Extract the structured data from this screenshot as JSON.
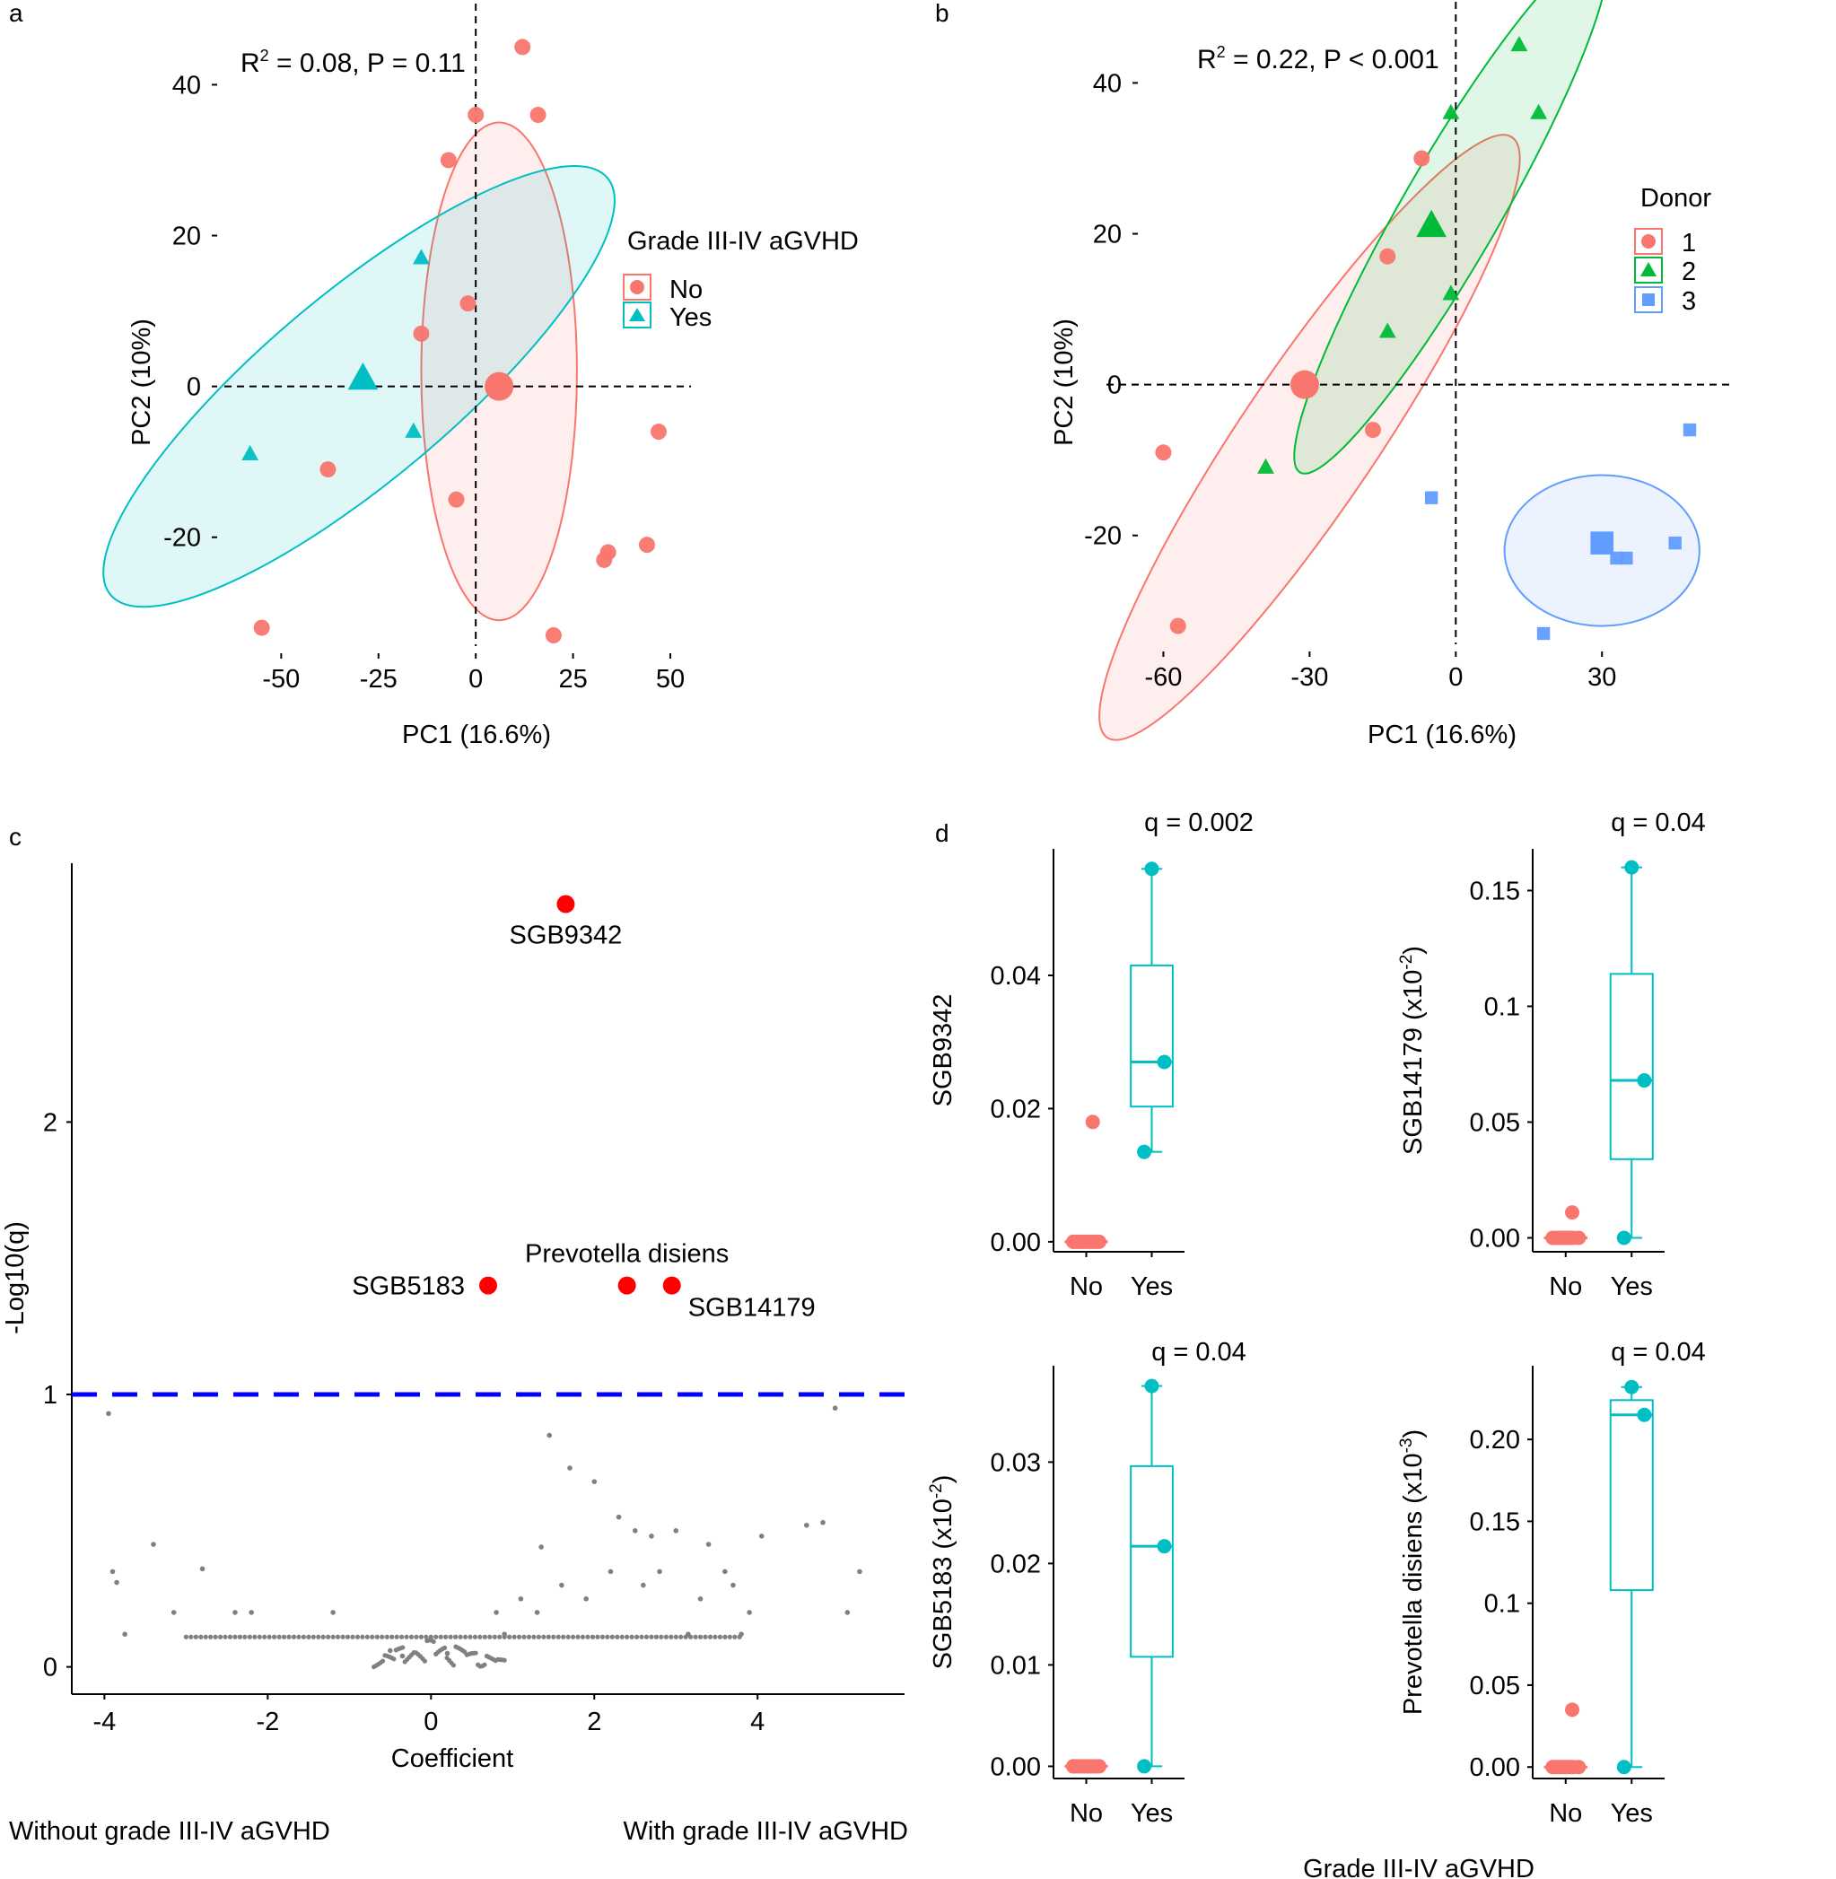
{
  "panel_labels": {
    "a": "a",
    "b": "b",
    "c": "c",
    "d": "d"
  },
  "colors": {
    "red": "#F8766D",
    "teal": "#00BFC4",
    "green": "#00BA38",
    "blue": "#619CFF",
    "sig": "#FF0000",
    "grey": "#808080",
    "threshold": "#0000FF"
  },
  "chart_data": [
    {
      "id": "a",
      "type": "scatter",
      "xlabel": "PC1 (16.6%)",
      "ylabel": "PC2 (10%)",
      "xlim": [
        -60,
        53
      ],
      "ylim": [
        -33,
        46
      ],
      "xticks": [
        -50,
        -25,
        0,
        25,
        50
      ],
      "yticks": [
        -20,
        0,
        20,
        40
      ],
      "annotation": {
        "base": "R",
        "sup": "2",
        "rest": " = 0.08, P = 0.11"
      },
      "legend": {
        "title": "Grade III-IV aGVHD",
        "placement": "right"
      },
      "series": [
        {
          "name": "No",
          "color": "#F8766D",
          "shape": "circle",
          "x": [
            12,
            16,
            0,
            -7,
            -2,
            -14,
            -38,
            -5,
            -55,
            20,
            33,
            34,
            44,
            47
          ],
          "y": [
            45,
            36,
            36,
            30,
            11,
            7,
            -11,
            -15,
            -32,
            -33,
            -23,
            -22,
            -21,
            -6
          ],
          "centroid": [
            6,
            0
          ],
          "ellipse": {
            "cx": 6,
            "cy": 2,
            "rx": 20,
            "ry": 33,
            "angle": 0
          }
        },
        {
          "name": "Yes",
          "color": "#00BFC4",
          "shape": "triangle",
          "x": [
            -14,
            -16,
            -58
          ],
          "y": [
            17,
            -6,
            -9
          ],
          "centroid": [
            -29,
            1
          ],
          "ellipse": {
            "cx": -30,
            "cy": 0,
            "rx": 24,
            "ry": 43,
            "angle": 50
          }
        }
      ]
    },
    {
      "id": "b",
      "type": "scatter",
      "xlabel": "PC1 (16.6%)",
      "ylabel": "PC2 (10%)",
      "xlim": [
        -68,
        55
      ],
      "ylim": [
        -33,
        46
      ],
      "xticks": [
        -60,
        -30,
        0,
        30
      ],
      "yticks": [
        -20,
        0,
        20,
        40
      ],
      "annotation": {
        "base": "R",
        "sup": "2",
        "rest": " = 0.22, P < 0.001"
      },
      "legend": {
        "title": "Donor",
        "placement": "right"
      },
      "series": [
        {
          "name": "1",
          "color": "#F8766D",
          "shape": "circle",
          "x": [
            -7,
            -14,
            -60,
            -57,
            -17
          ],
          "y": [
            30,
            17,
            -9,
            -32,
            -6
          ],
          "centroid": [
            -31,
            0
          ],
          "ellipse": {
            "cx": -30,
            "cy": -7,
            "rx": 14,
            "ry": 48,
            "angle": 34
          }
        },
        {
          "name": "2",
          "color": "#00BA38",
          "shape": "triangle",
          "x": [
            13,
            17,
            -1,
            -1,
            -14,
            -39
          ],
          "y": [
            45,
            36,
            36,
            12,
            7,
            -11
          ],
          "centroid": [
            -5,
            21
          ],
          "ellipse": {
            "cx": -1,
            "cy": 23,
            "rx": 10,
            "ry": 40,
            "angle": 30
          }
        },
        {
          "name": "3",
          "color": "#619CFF",
          "shape": "square",
          "x": [
            -5,
            48,
            45,
            35,
            33,
            18
          ],
          "y": [
            -15,
            -6,
            -21,
            -23,
            -23,
            -33
          ],
          "centroid": [
            30,
            -21
          ],
          "ellipse": {
            "cx": 30,
            "cy": -22,
            "rx": 20,
            "ry": 10,
            "angle": 0
          }
        }
      ]
    },
    {
      "id": "c",
      "type": "scatter",
      "xlabel": "Coefficient",
      "ylabel": "-Log10(q)",
      "xlim": [
        -4.4,
        5.8
      ],
      "ylim": [
        -0.1,
        2.95
      ],
      "xticks": [
        -4,
        -2,
        0,
        2,
        4
      ],
      "yticks": [
        0,
        1,
        2
      ],
      "threshold": 1,
      "bottom_labels": {
        "left": "Without grade III-IV aGVHD",
        "right": "With grade III-IV aGVHD"
      },
      "significant": [
        {
          "label": "SGB9342",
          "x": 1.65,
          "y": 2.8
        },
        {
          "label": "SGB5183",
          "x": 0.7,
          "y": 1.4
        },
        {
          "label": "Prevotella disiens",
          "x": 2.4,
          "y": 1.4
        },
        {
          "label": "SGB14179",
          "x": 2.95,
          "y": 1.4
        }
      ],
      "background": {
        "x": [
          -3.95,
          -3.9,
          -3.85,
          -3.75,
          -3.4,
          -3.15,
          -2.8,
          -2.4,
          -2.2,
          -1.2,
          1.1,
          1.45,
          1.7,
          2.0,
          2.3,
          2.5,
          2.7,
          3.0,
          3.4,
          3.6,
          4.05,
          4.6,
          4.8,
          4.95,
          5.1,
          5.25,
          -0.5,
          -0.35,
          0.2,
          0.8,
          1.1,
          1.35,
          1.9,
          2.2,
          2.8,
          3.3,
          3.9,
          0.9,
          1.6,
          2.6,
          3.7,
          1.3,
          3.15,
          3.8
        ],
        "y": [
          0.93,
          0.35,
          0.31,
          0.12,
          0.45,
          0.2,
          0.36,
          0.2,
          0.2,
          0.2,
          1.0,
          0.85,
          0.73,
          0.68,
          0.55,
          0.5,
          0.48,
          0.5,
          0.45,
          0.35,
          0.48,
          0.52,
          0.53,
          0.95,
          0.2,
          0.35,
          0.06,
          0.04,
          0.05,
          0.2,
          0.25,
          0.44,
          0.25,
          0.35,
          0.35,
          0.25,
          0.2,
          0.12,
          0.3,
          0.3,
          0.3,
          0.2,
          0.12,
          0.12
        ],
        "band": {
          "x_min": -3.0,
          "x_max": 3.8,
          "y": 0.11
        },
        "cluster": {
          "x_min": -0.7,
          "x_max": 0.9,
          "y_min": 0.0,
          "y_max": 0.1
        }
      }
    },
    {
      "id": "d",
      "type": "box",
      "xlabel": "Grade III-IV aGVHD",
      "categories": [
        "No",
        "Yes"
      ],
      "panels": [
        {
          "title": "q = 0.002",
          "ylabel": "SGB9342",
          "ylim": [
            -0.0015,
            0.059
          ],
          "yticks": [
            0,
            0.02,
            0.04
          ],
          "ytick_labels": [
            "0.00",
            "0.02",
            "0.04"
          ],
          "no_points": [
            0.0,
            0.0,
            0.0,
            0.0,
            0.0,
            0.0,
            0.0,
            0.0,
            0.0,
            0.0,
            0.0,
            0.0,
            0.0,
            0.018
          ],
          "yes_points": [
            0.056,
            0.027,
            0.0135
          ],
          "yes_box": {
            "min": 0.0135,
            "q1": 0.0203,
            "median": 0.027,
            "q3": 0.0415,
            "max": 0.056
          }
        },
        {
          "title": "q = 0.04",
          "ylabel": "SGB14179 (x10",
          "ylabel_sup": "-2",
          "ylabel_tail": ")",
          "ylim": [
            -0.006,
            0.168
          ],
          "yticks": [
            0,
            0.05,
            0.1,
            0.15
          ],
          "ytick_labels": [
            "0.00",
            "0.05",
            "0.1",
            "0.15"
          ],
          "no_points": [
            0.0,
            0.0,
            0.0,
            0.0,
            0.0,
            0.0,
            0.0,
            0.0,
            0.0,
            0.0,
            0.011
          ],
          "yes_points": [
            0.16,
            0.068,
            0.0
          ],
          "yes_box": {
            "min": 0.0,
            "q1": 0.034,
            "median": 0.068,
            "q3": 0.114,
            "max": 0.16
          }
        },
        {
          "title": "q = 0.04",
          "ylabel": "SGB5183 (x10",
          "ylabel_sup": "-2",
          "ylabel_tail": ")",
          "ylim": [
            -0.0012,
            0.0395
          ],
          "yticks": [
            0,
            0.01,
            0.02,
            0.03
          ],
          "ytick_labels": [
            "0.00",
            "0.01",
            "0.02",
            "0.03"
          ],
          "no_points": [
            0.0,
            0.0,
            0.0,
            0.0,
            0.0,
            0.0,
            0.0,
            0.0,
            0.0,
            0.0,
            0.0,
            0.0
          ],
          "yes_points": [
            0.0375,
            0.0217,
            0.0
          ],
          "yes_box": {
            "min": 0.0,
            "q1": 0.0108,
            "median": 0.0217,
            "q3": 0.0296,
            "max": 0.0375
          }
        },
        {
          "title": "q = 0.04",
          "ylabel": "Prevotella disiens (x10",
          "ylabel_sup": "-3",
          "ylabel_tail": ")",
          "ylim": [
            -0.007,
            0.245
          ],
          "yticks": [
            0,
            0.05,
            0.1,
            0.15,
            0.2
          ],
          "ytick_labels": [
            "0.00",
            "0.05",
            "0.1",
            "0.15",
            "0.20"
          ],
          "no_points": [
            0.0,
            0.0,
            0.0,
            0.0,
            0.0,
            0.0,
            0.0,
            0.0,
            0.0,
            0.0,
            0.035
          ],
          "yes_points": [
            0.232,
            0.215,
            0.0
          ],
          "yes_box": {
            "min": 0.0,
            "q1": 0.108,
            "median": 0.215,
            "q3": 0.224,
            "max": 0.232
          }
        }
      ]
    }
  ]
}
